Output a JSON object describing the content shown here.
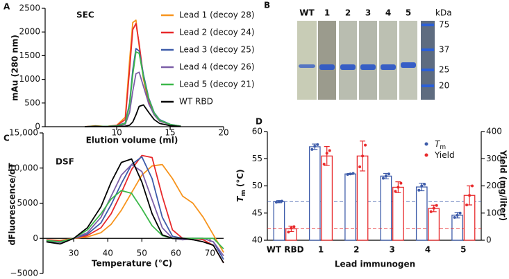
{
  "chart_data": [
    {
      "type": "line",
      "label": "A",
      "title": "SEC",
      "xlabel": "Elution volume (ml)",
      "ylabel": "mAu (280 nm)",
      "x": [
        7,
        8,
        9,
        10,
        10.8,
        11.2,
        11.5,
        11.8,
        12.1,
        12.5,
        13,
        13.5,
        14,
        15,
        16
      ],
      "series": [
        {
          "name": "Lead 1 (decoy 28)",
          "color": "#f7941d",
          "values": [
            0,
            20,
            5,
            30,
            200,
            1400,
            2200,
            2250,
            1700,
            1000,
            500,
            250,
            120,
            40,
            10
          ]
        },
        {
          "name": "Lead 2 (decoy 24)",
          "color": "#e8292b",
          "values": [
            0,
            15,
            5,
            25,
            150,
            1200,
            2050,
            2180,
            1750,
            1050,
            520,
            260,
            130,
            45,
            10
          ]
        },
        {
          "name": "Lead 3 (decoy 25)",
          "color": "#3d5ba9",
          "values": [
            0,
            10,
            5,
            20,
            80,
            500,
            1200,
            1650,
            1600,
            1100,
            600,
            300,
            150,
            50,
            10
          ]
        },
        {
          "name": "Lead 4 (decoy 26)",
          "color": "#7b5ea7",
          "values": [
            0,
            10,
            5,
            15,
            50,
            300,
            750,
            1120,
            1150,
            850,
            480,
            250,
            120,
            40,
            10
          ]
        },
        {
          "name": "Lead 5 (decoy 21)",
          "color": "#3cb84a",
          "values": [
            0,
            10,
            5,
            15,
            70,
            450,
            1100,
            1580,
            1550,
            1050,
            580,
            290,
            140,
            45,
            10
          ]
        },
        {
          "name": "WT RBD",
          "color": "#000000",
          "values": [
            0,
            5,
            0,
            5,
            10,
            30,
            100,
            250,
            430,
            460,
            300,
            150,
            70,
            20,
            5
          ]
        }
      ],
      "xlim": [
        3.3,
        20
      ],
      "xticks": [
        10,
        15,
        20
      ],
      "ylim": [
        0,
        2500
      ],
      "yticks": [
        0,
        500,
        1000,
        1500,
        2000,
        2500
      ],
      "legend": "upper right"
    },
    {
      "type": "line",
      "label": "C",
      "title": "DSF",
      "xlabel": "Temperature (°C)",
      "ylabel": "dFluorescence/dT",
      "x": [
        22,
        26,
        30,
        34,
        38,
        41,
        44,
        47,
        50,
        53,
        56,
        59,
        62,
        65,
        68,
        71,
        74
      ],
      "series": [
        {
          "color": "#f7941d",
          "values": [
            -200,
            -300,
            0,
            200,
            800,
            2000,
            4000,
            6500,
            9000,
            10300,
            10500,
            8500,
            6000,
            5000,
            3000,
            500,
            -2000
          ]
        },
        {
          "color": "#e8292b",
          "values": [
            -200,
            -400,
            0,
            400,
            1500,
            3500,
            6500,
            9800,
            11800,
            11500,
            6000,
            1200,
            0,
            0,
            -200,
            -1000,
            -3500
          ]
        },
        {
          "color": "#3d5ba9",
          "values": [
            -300,
            -500,
            0,
            600,
            2200,
            4800,
            7800,
            10500,
            11600,
            8500,
            3000,
            300,
            0,
            0,
            0,
            -500,
            -3000
          ]
        },
        {
          "color": "#7b5ea7",
          "values": [
            -400,
            -600,
            0,
            800,
            3000,
            6000,
            9000,
            10500,
            9500,
            5500,
            1500,
            0,
            -200,
            0,
            0,
            -500,
            -2500
          ]
        },
        {
          "color": "#3cb84a",
          "values": [
            -300,
            -500,
            0,
            1200,
            3500,
            5600,
            6800,
            6400,
            4200,
            1800,
            400,
            0,
            0,
            0,
            0,
            0,
            -1500
          ]
        },
        {
          "color": "#000000",
          "values": [
            -500,
            -800,
            0,
            1500,
            4500,
            8000,
            10800,
            11300,
            8000,
            3500,
            500,
            0,
            0,
            -200,
            -500,
            -1000,
            -3500
          ]
        }
      ],
      "xlim": [
        21,
        74
      ],
      "xticks": [
        30,
        40,
        50,
        60,
        70
      ],
      "ylim": [
        -5000,
        15000
      ],
      "yticks": [
        {
          "value": -5000,
          "label": "−5000"
        },
        0,
        5000,
        {
          "value": 10000,
          "label": "10,000"
        },
        {
          "value": 15000,
          "label": "15,000"
        }
      ]
    },
    {
      "type": "bar",
      "label": "D",
      "xlabel": "Lead immunogen",
      "ylabel": {
        "symbol": "T",
        "subscript": "m",
        "unit": "(°C)"
      },
      "y2label": "Yield (mg/liter)",
      "categories": [
        "WT RBD",
        "1",
        "2",
        "3",
        "4",
        "5"
      ],
      "series": [
        {
          "name": "T",
          "name_subscript": "m",
          "color": "#3d5ba9",
          "values": [
            47.1,
            57.2,
            52.2,
            51.8,
            49.8,
            44.6
          ],
          "errors": [
            0.2,
            0.5,
            0.1,
            0.5,
            0.7,
            0.5
          ],
          "replicates": [
            [
              47.0,
              47.1,
              47.2
            ],
            [
              56.7,
              57.3,
              57.6
            ],
            [
              52.1,
              52.2,
              52.3
            ],
            [
              51.4,
              51.8,
              52.2
            ],
            [
              49.2,
              50.0,
              50.3
            ],
            [
              44.2,
              44.6,
              45.0
            ]
          ]
        },
        {
          "name": "Yield",
          "color": "#e8292b",
          "axis": "y2",
          "values": [
            42,
            310,
            310,
            195,
            117,
            165
          ],
          "errors": [
            10,
            35,
            55,
            20,
            12,
            35
          ],
          "replicates": [
            [
              30,
              45,
              50
            ],
            [
              280,
              320,
              330
            ],
            [
              270,
              310,
              350
            ],
            [
              180,
              195,
              210
            ],
            [
              105,
              118,
              128
            ],
            [
              130,
              165,
              200
            ]
          ]
        }
      ],
      "ylim": [
        40,
        60
      ],
      "yticks": [
        40,
        45,
        50,
        55,
        60
      ],
      "y2lim": [
        0,
        400
      ],
      "y2ticks": [
        0,
        100,
        200,
        300,
        400
      ],
      "reference_lines": true,
      "legend": "upper right"
    }
  ],
  "gel": {
    "label": "B",
    "lanes": [
      "WT",
      "1",
      "2",
      "3",
      "4",
      "5"
    ],
    "unit": "kDa",
    "markers": [
      75,
      37,
      25,
      20
    ]
  }
}
